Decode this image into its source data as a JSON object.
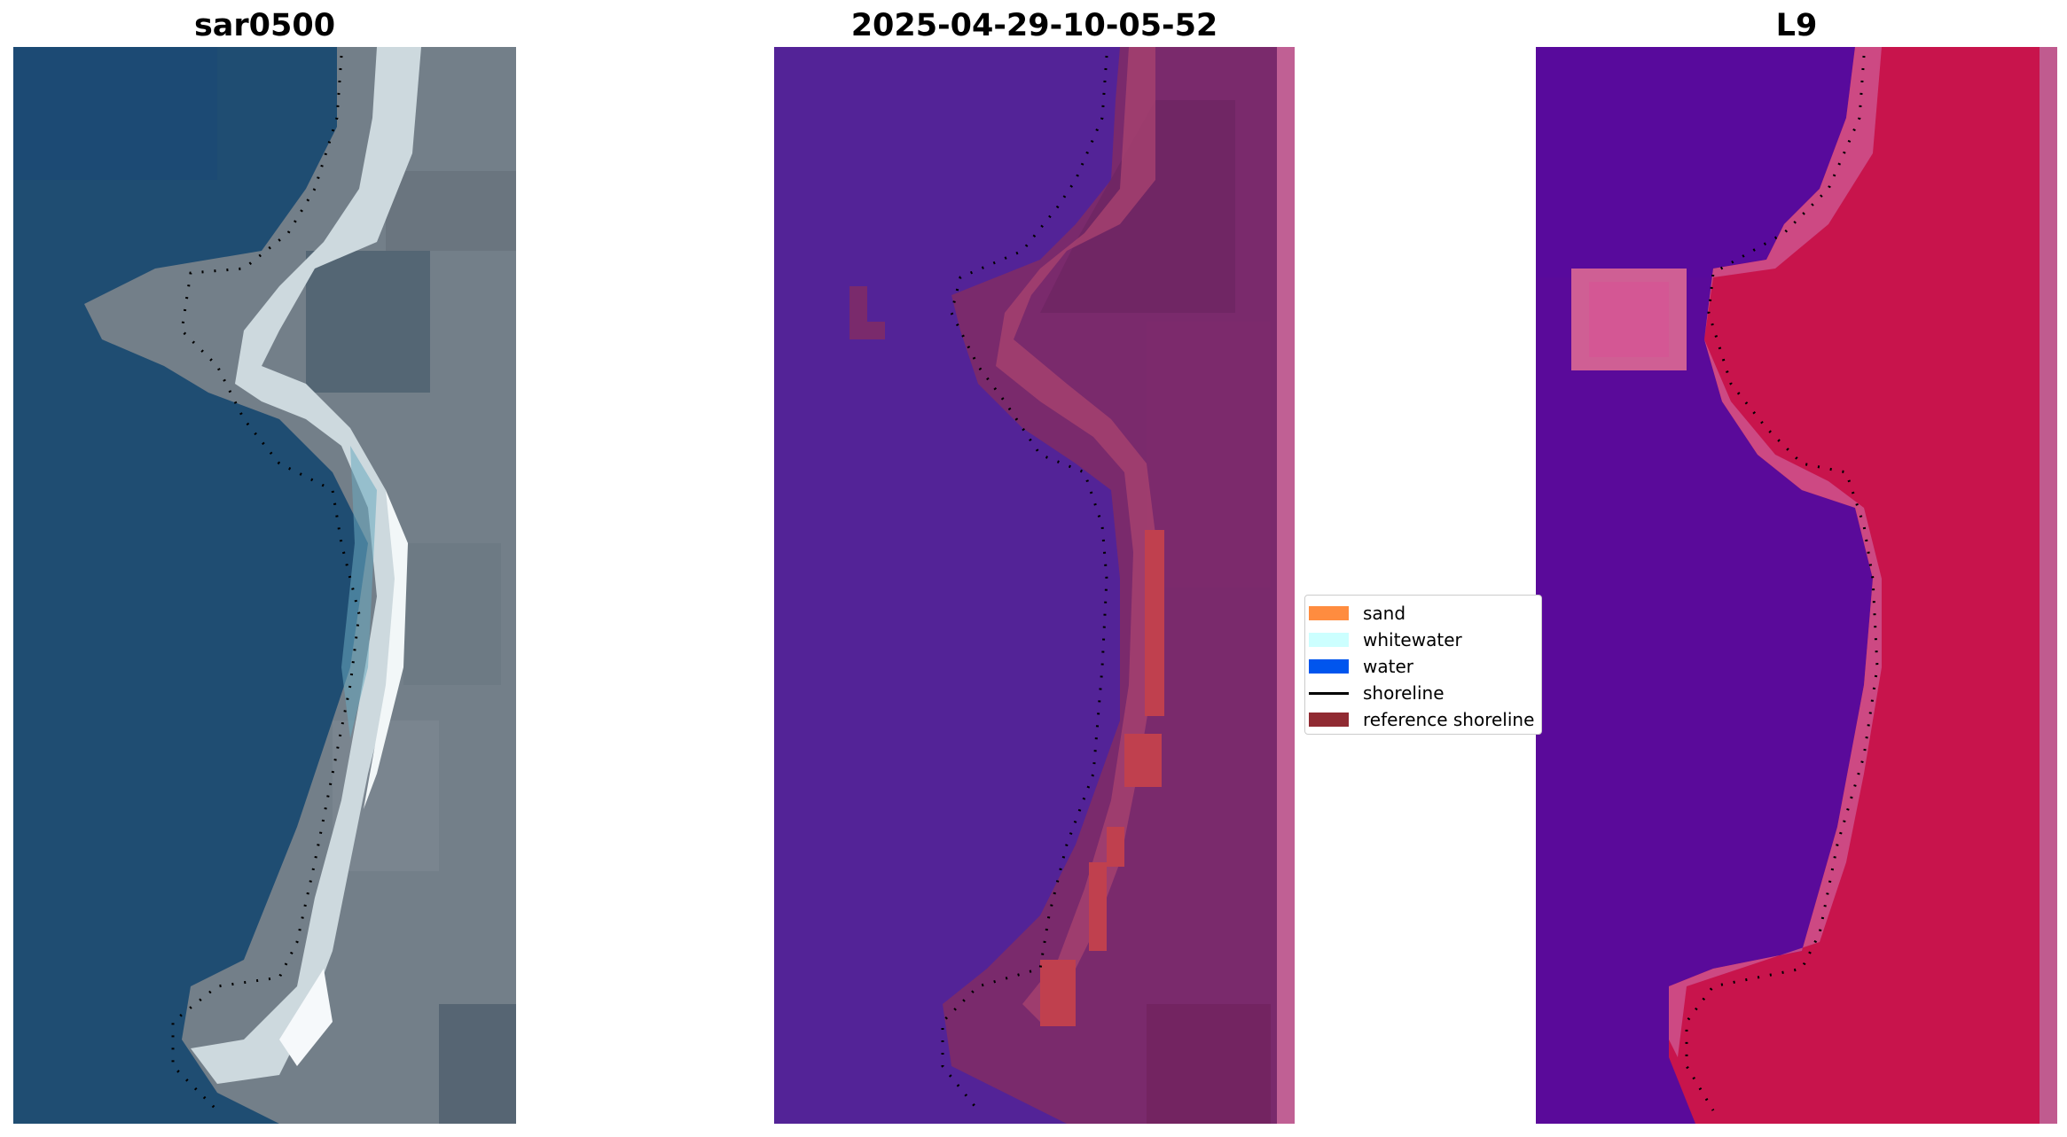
{
  "panels": [
    {
      "title": "sar0500",
      "content": "rgb-satellite"
    },
    {
      "title": "2025-04-29-10-05-52",
      "content": "classified-image"
    },
    {
      "title": "L9",
      "content": "index-image"
    }
  ],
  "legend": {
    "items": [
      {
        "label": "sand",
        "color": "#ff8c3f",
        "kind": "patch"
      },
      {
        "label": "whitewater",
        "color": "#ccffff",
        "kind": "patch"
      },
      {
        "label": "water",
        "color": "#0055ee",
        "kind": "patch"
      },
      {
        "label": "shoreline",
        "color": "#000000",
        "kind": "line"
      },
      {
        "label": "reference shoreline",
        "color": "#902a32",
        "kind": "patch"
      }
    ]
  },
  "colors": {
    "rgb_water": "#1d4b70",
    "rgb_land": "#76818a",
    "rgb_beach": "#d9e6ea",
    "class_water": "#532397",
    "class_land": "#7a2a6c",
    "class_sand": "#c0404e",
    "index_water": "#5a0a9a",
    "index_land": "#c8144c"
  }
}
